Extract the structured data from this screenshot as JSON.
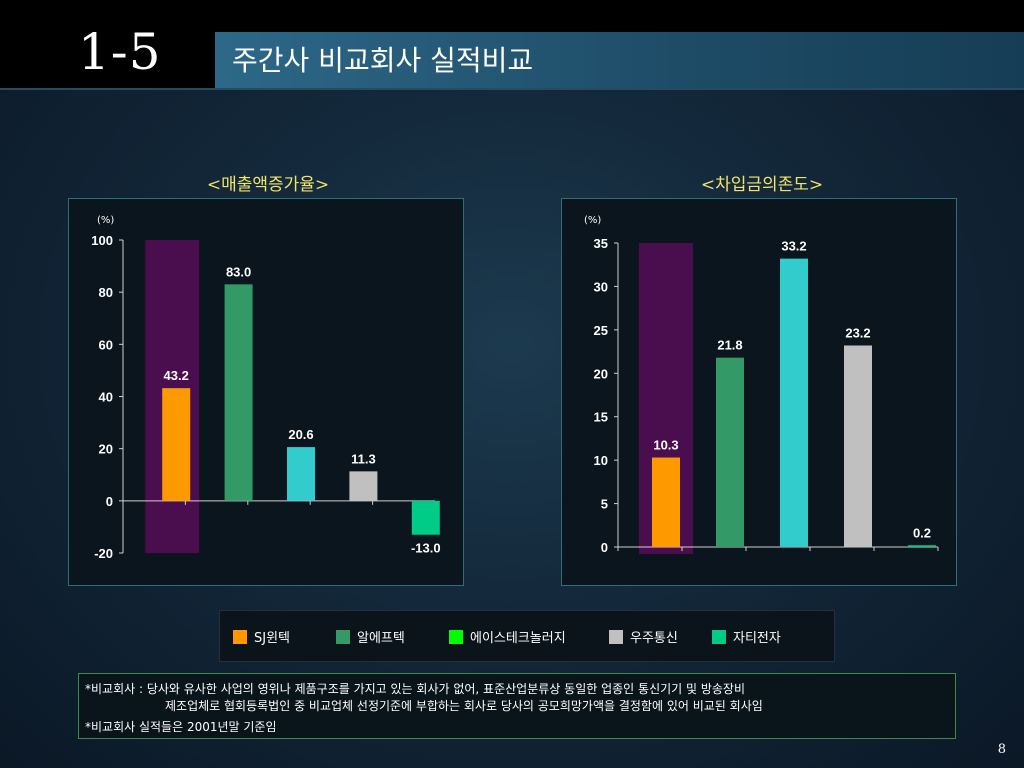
{
  "header": {
    "section_no": "1-5",
    "title": "주간사 비교회사 실적비교"
  },
  "chart_data": [
    {
      "type": "bar",
      "title": "<매출액증가율>",
      "unit": "(%)",
      "ylim": [
        -20,
        100
      ],
      "yticks": [
        100,
        80,
        60,
        40,
        20,
        0,
        -20
      ],
      "grid": false,
      "categories": [
        "SJ윈텍",
        "알에프텍",
        "에이스테크놀러지",
        "우주통신",
        "자티전자"
      ],
      "series": [
        {
          "values": [
            43.2,
            83.0,
            20.6,
            11.3,
            -13.0
          ]
        }
      ],
      "value_labels": [
        "43.2",
        "83.0",
        "20.6",
        "11.3",
        "-13.0"
      ],
      "highlight": "SJ윈텍"
    },
    {
      "type": "bar",
      "title": "<차입금의존도>",
      "unit": "(%)",
      "ylim": [
        0,
        35
      ],
      "yticks": [
        35,
        30,
        25,
        20,
        15,
        10,
        5,
        0
      ],
      "grid": false,
      "categories": [
        "SJ윈텍",
        "알에프텍",
        "에이스테크놀러지",
        "우주통신",
        "자티전자"
      ],
      "series": [
        {
          "values": [
            10.3,
            21.8,
            33.2,
            23.2,
            0.2
          ]
        }
      ],
      "value_labels": [
        "10.3",
        "21.8",
        "33.2",
        "23.2",
        "0.2"
      ],
      "highlight": "SJ윈텍"
    }
  ],
  "colors": {
    "SJ윈텍": "#ff9900",
    "알에프텍": "#339966",
    "에이스테크놀러지": "#00ff00",
    "우주통신": "#c0c0c0",
    "자티전자": "#00cc88",
    "chart1_bars": [
      "#ff9900",
      "#339966",
      "#33cccc",
      "#c0c0c0",
      "#00cc88"
    ],
    "chart2_bars": [
      "#ff9900",
      "#339966",
      "#33cccc",
      "#c0c0c0",
      "#00cc88"
    ],
    "highlight": "#4a0e4e"
  },
  "legend": [
    {
      "label": "SJ윈텍",
      "color": "#ff9900"
    },
    {
      "label": "알에프텍",
      "color": "#339966"
    },
    {
      "label": "에이스테크놀러지",
      "color": "#00ff00"
    },
    {
      "label": "우주통신",
      "color": "#c0c0c0"
    },
    {
      "label": "자티전자",
      "color": "#00cc88"
    }
  ],
  "notes": {
    "line1": "*비교회사 : 당사와 유사한 사업의 영위나 제품구조를 가지고 있는 회사가 없어, 표준산업분류상 동일한 업종인 통신기기 및 방송장비",
    "line2": "제조업체로 협회등록법인 중 비교업체 선정기준에 부합하는 회사로 당사의 공모희망가액을 결정함에 있어 비교된 회사임",
    "line3": "*비교회사 실적들은 2001년말 기준임"
  },
  "page_number": "8"
}
